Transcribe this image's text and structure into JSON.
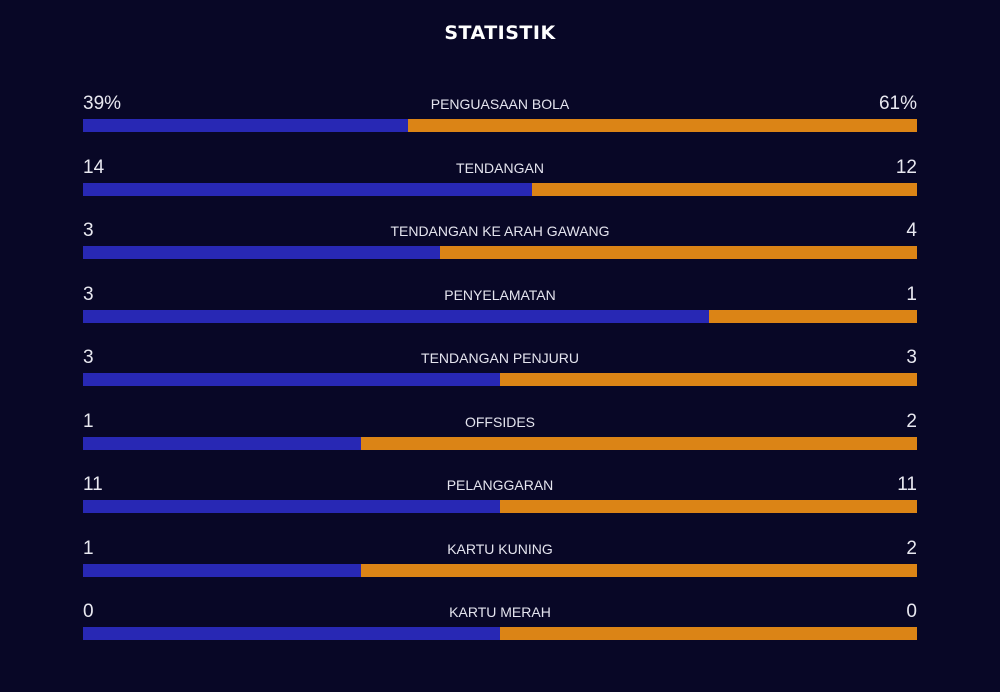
{
  "title": "STATISTIK",
  "colors": {
    "home": "#2828b4",
    "away": "#db8416",
    "background": "#080726"
  },
  "chart_data": {
    "type": "bar",
    "title": "STATISTIK",
    "stats": [
      {
        "label": "PENGUASAAN BOLA",
        "home": "39%",
        "away": "61%",
        "home_value": 39,
        "away_value": 61
      },
      {
        "label": "TENDANGAN",
        "home": "14",
        "away": "12",
        "home_value": 14,
        "away_value": 12
      },
      {
        "label": "TENDANGAN KE ARAH GAWANG",
        "home": "3",
        "away": "4",
        "home_value": 3,
        "away_value": 4
      },
      {
        "label": "PENYELAMATAN",
        "home": "3",
        "away": "1",
        "home_value": 3,
        "away_value": 1
      },
      {
        "label": "TENDANGAN PENJURU",
        "home": "3",
        "away": "3",
        "home_value": 3,
        "away_value": 3
      },
      {
        "label": "OFFSIDES",
        "home": "1",
        "away": "2",
        "home_value": 1,
        "away_value": 2
      },
      {
        "label": "PELANGGARAN",
        "home": "11",
        "away": "11",
        "home_value": 11,
        "away_value": 11
      },
      {
        "label": "KARTU KUNING",
        "home": "1",
        "away": "2",
        "home_value": 1,
        "away_value": 2
      },
      {
        "label": "KARTU MERAH",
        "home": "0",
        "away": "0",
        "home_value": 0,
        "away_value": 0
      }
    ]
  }
}
